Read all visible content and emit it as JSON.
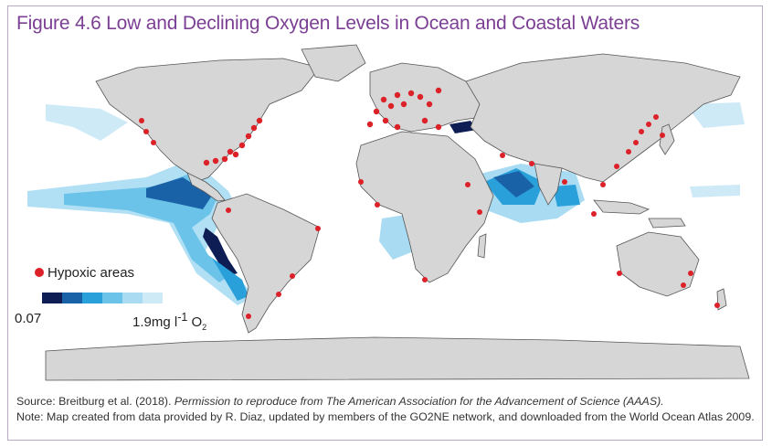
{
  "title": "Figure 4.6 Low and Declining Oxygen Levels in Ocean and Coastal Waters",
  "legend": {
    "hypoxic_label": "Hypoxic areas",
    "hypoxic_color": "#dc2128",
    "scale_min": "0.07",
    "scale_max_prefix": "1.9mg l",
    "scale_max_sup": "-1",
    "scale_max_mid": " O",
    "scale_max_sub": "2",
    "scale_colors": [
      "#0e1e55",
      "#1a62a8",
      "#2aa0db",
      "#6cc3ea",
      "#a9dcf2",
      "#cfeaf7"
    ]
  },
  "colors": {
    "land": "#d6d6d6",
    "land_outline": "#555555",
    "ocean": "#ffffff",
    "title": "#7b3f94"
  },
  "source": {
    "line1_prefix": "Source: Breitburg et al. (2018). ",
    "line1_italic": "Permission to reproduce from The American Association for the Advancement of Science (AAAS).",
    "line2": "Note: Map created from data provided by R. Diaz, updated by members of the GO2NE network, and downloaded from the World Ocean Atlas 2009."
  }
}
